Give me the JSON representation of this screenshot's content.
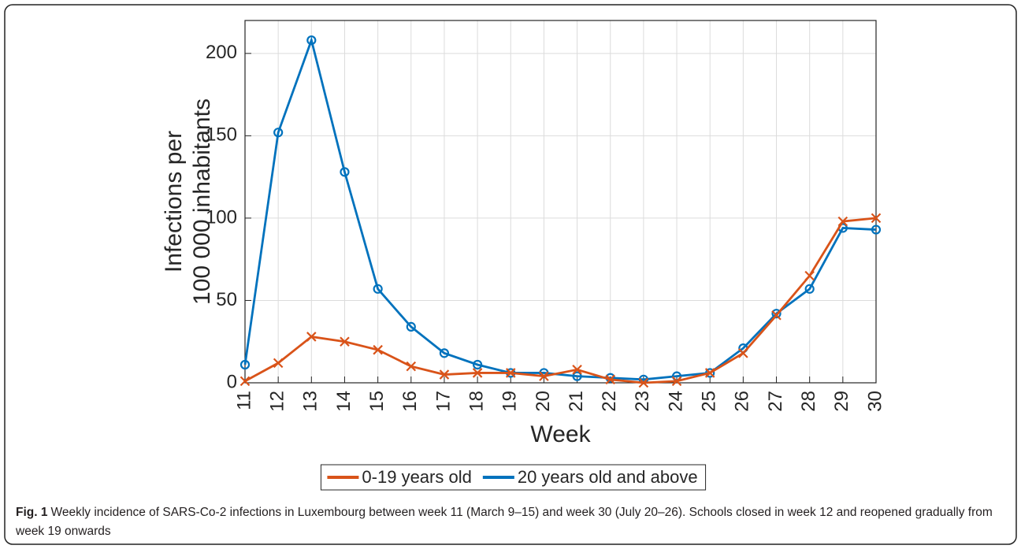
{
  "chart_data": {
    "type": "line",
    "ylabel": [
      "Infections per",
      "100 000 inhabitants"
    ],
    "xlabel": "Week",
    "x": [
      11,
      12,
      13,
      14,
      15,
      16,
      17,
      18,
      19,
      20,
      21,
      22,
      23,
      24,
      25,
      26,
      27,
      28,
      29,
      30
    ],
    "series": [
      {
        "name": "0-19 years old",
        "color": "#D95319",
        "marker": "x",
        "values": [
          1,
          12,
          28,
          25,
          20,
          10,
          5,
          6,
          6,
          4,
          8,
          2,
          0,
          1,
          6,
          18,
          41,
          65,
          98,
          100
        ]
      },
      {
        "name": "20 years old and above",
        "color": "#0072BD",
        "marker": "o",
        "values": [
          11,
          152,
          208,
          128,
          57,
          34,
          18,
          11,
          6,
          6,
          4,
          3,
          2,
          4,
          6,
          21,
          42,
          57,
          94,
          93
        ]
      }
    ],
    "xlim": [
      11,
      30
    ],
    "xticks": [
      11,
      12,
      13,
      14,
      15,
      16,
      17,
      18,
      19,
      20,
      21,
      22,
      23,
      24,
      25,
      26,
      27,
      28,
      29,
      30
    ],
    "ylim": [
      0,
      220
    ],
    "yticks": [
      0,
      50,
      100,
      150,
      200
    ],
    "grid": true,
    "legend": "bottom"
  },
  "caption": {
    "label": "Fig. 1",
    "text": "Weekly incidence of SARS-Co-2 infections in Luxembourg between week 11 (March 9–15) and week 30 (July 20–26). Schools closed in week 12 and reopened gradually from week 19 onwards"
  }
}
